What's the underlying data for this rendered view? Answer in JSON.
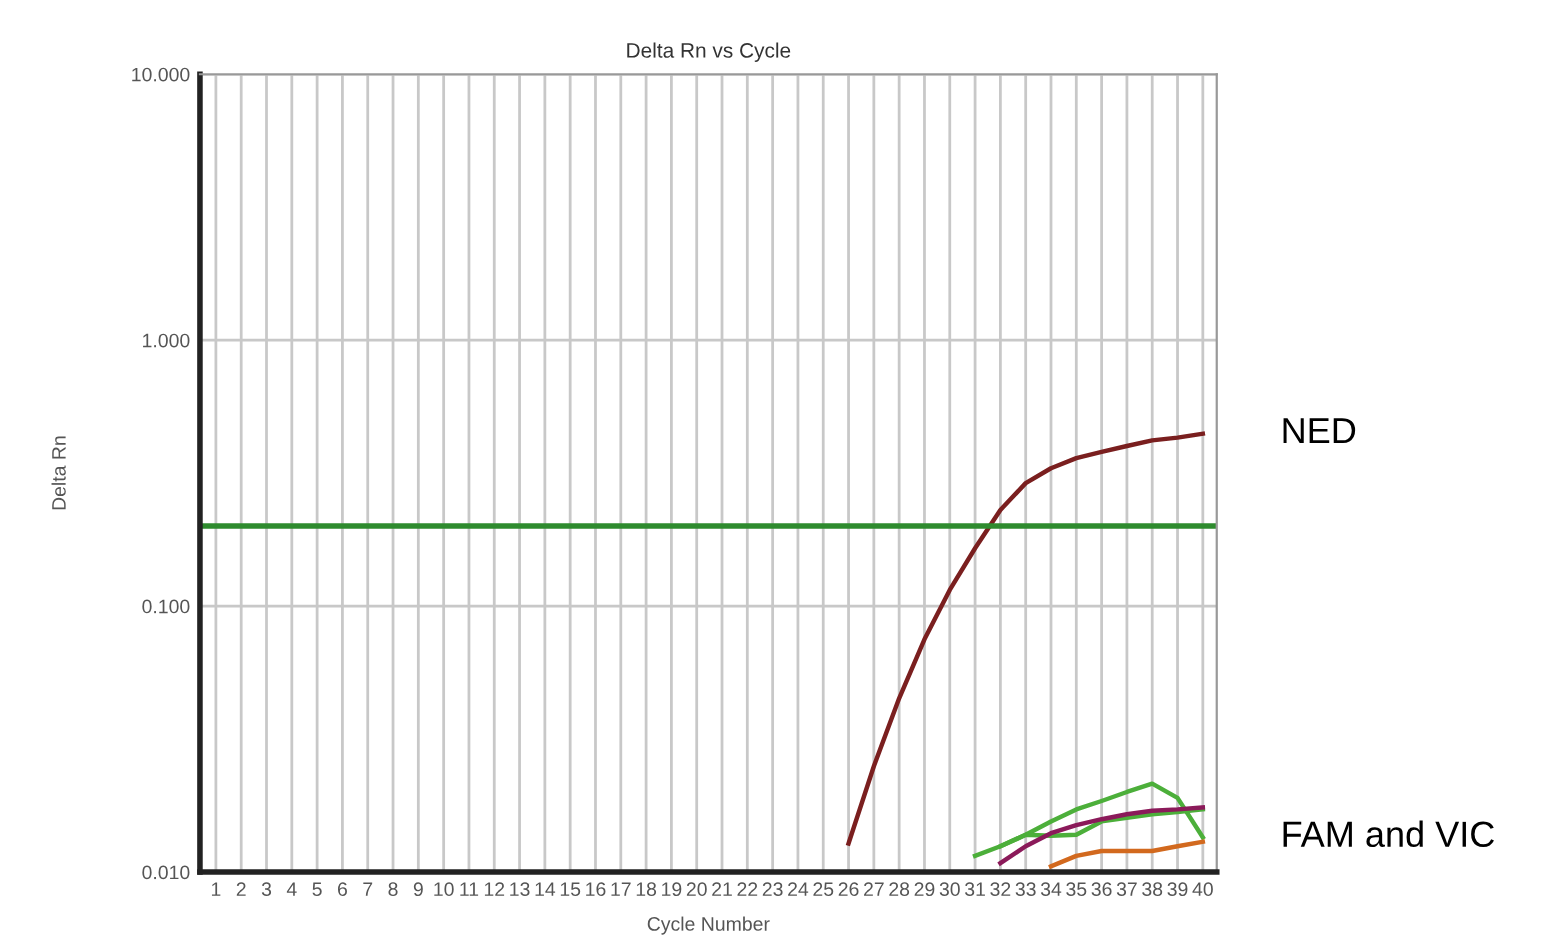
{
  "chart_data": {
    "type": "line",
    "title": "Delta Rn vs Cycle",
    "xlabel": "Cycle Number",
    "ylabel": "Delta Rn",
    "log": "y",
    "grid": true,
    "marker": "none",
    "line_style": "solid",
    "xlim": [
      0.37,
      40.55
    ],
    "xticks": [
      1,
      2,
      3,
      4,
      5,
      6,
      7,
      8,
      9,
      10,
      11,
      12,
      13,
      14,
      15,
      16,
      17,
      18,
      19,
      20,
      21,
      22,
      23,
      24,
      25,
      26,
      27,
      28,
      29,
      30,
      31,
      32,
      33,
      34,
      35,
      36,
      37,
      38,
      39,
      40
    ],
    "ylim": [
      0.01,
      10
    ],
    "yticks": [
      {
        "value": 0.01,
        "label": "0.010"
      },
      {
        "value": 0.1,
        "label": "0.100"
      },
      {
        "value": 1,
        "label": "1.000"
      },
      {
        "value": 10,
        "label": "10.000"
      }
    ],
    "ref_lines": [
      {
        "axis": "y",
        "value": 0.2,
        "label": null,
        "color": "#2e8b2e"
      }
    ],
    "series": [
      {
        "color": "#7a1f1f",
        "x": [
          26,
          27,
          28,
          29,
          30,
          31,
          32,
          33,
          34,
          35,
          36,
          37,
          38,
          39,
          40
        ],
        "values": [
          0.0128,
          0.025,
          0.045,
          0.075,
          0.115,
          0.165,
          0.23,
          0.29,
          0.33,
          0.36,
          0.38,
          0.4,
          0.42,
          0.43,
          0.445
        ]
      },
      {
        "color": "#4caf3a",
        "x": [
          31,
          32,
          33,
          34,
          35,
          36,
          37,
          38,
          39,
          40
        ],
        "values": [
          0.0115,
          0.0125,
          0.0138,
          0.0155,
          0.0172,
          0.0185,
          0.02,
          0.0215,
          0.019,
          0.0135
        ]
      },
      {
        "color": "#4caf3a",
        "x": [
          32,
          33,
          34,
          35,
          36,
          37,
          38,
          39,
          40
        ],
        "values": [
          0.0125,
          0.0138,
          0.0137,
          0.0138,
          0.0155,
          0.016,
          0.0165,
          0.0168,
          0.0172
        ]
      },
      {
        "color": "#8b1a5a",
        "x": [
          32,
          33,
          34,
          35,
          36,
          37,
          38,
          39,
          40
        ],
        "values": [
          0.0108,
          0.0125,
          0.014,
          0.015,
          0.0158,
          0.0165,
          0.017,
          0.0172,
          0.0175
        ]
      },
      {
        "color": "#d2691e",
        "x": [
          34,
          35,
          36,
          37,
          38,
          39,
          40
        ],
        "values": [
          0.0105,
          0.0115,
          0.012,
          0.012,
          0.012,
          0.0125,
          0.013
        ]
      }
    ],
    "annotations": [
      {
        "text": "NED",
        "x": 40,
        "y": 0.445
      },
      {
        "text": "FAM and VIC",
        "x": 40,
        "y": 0.0135
      }
    ]
  }
}
